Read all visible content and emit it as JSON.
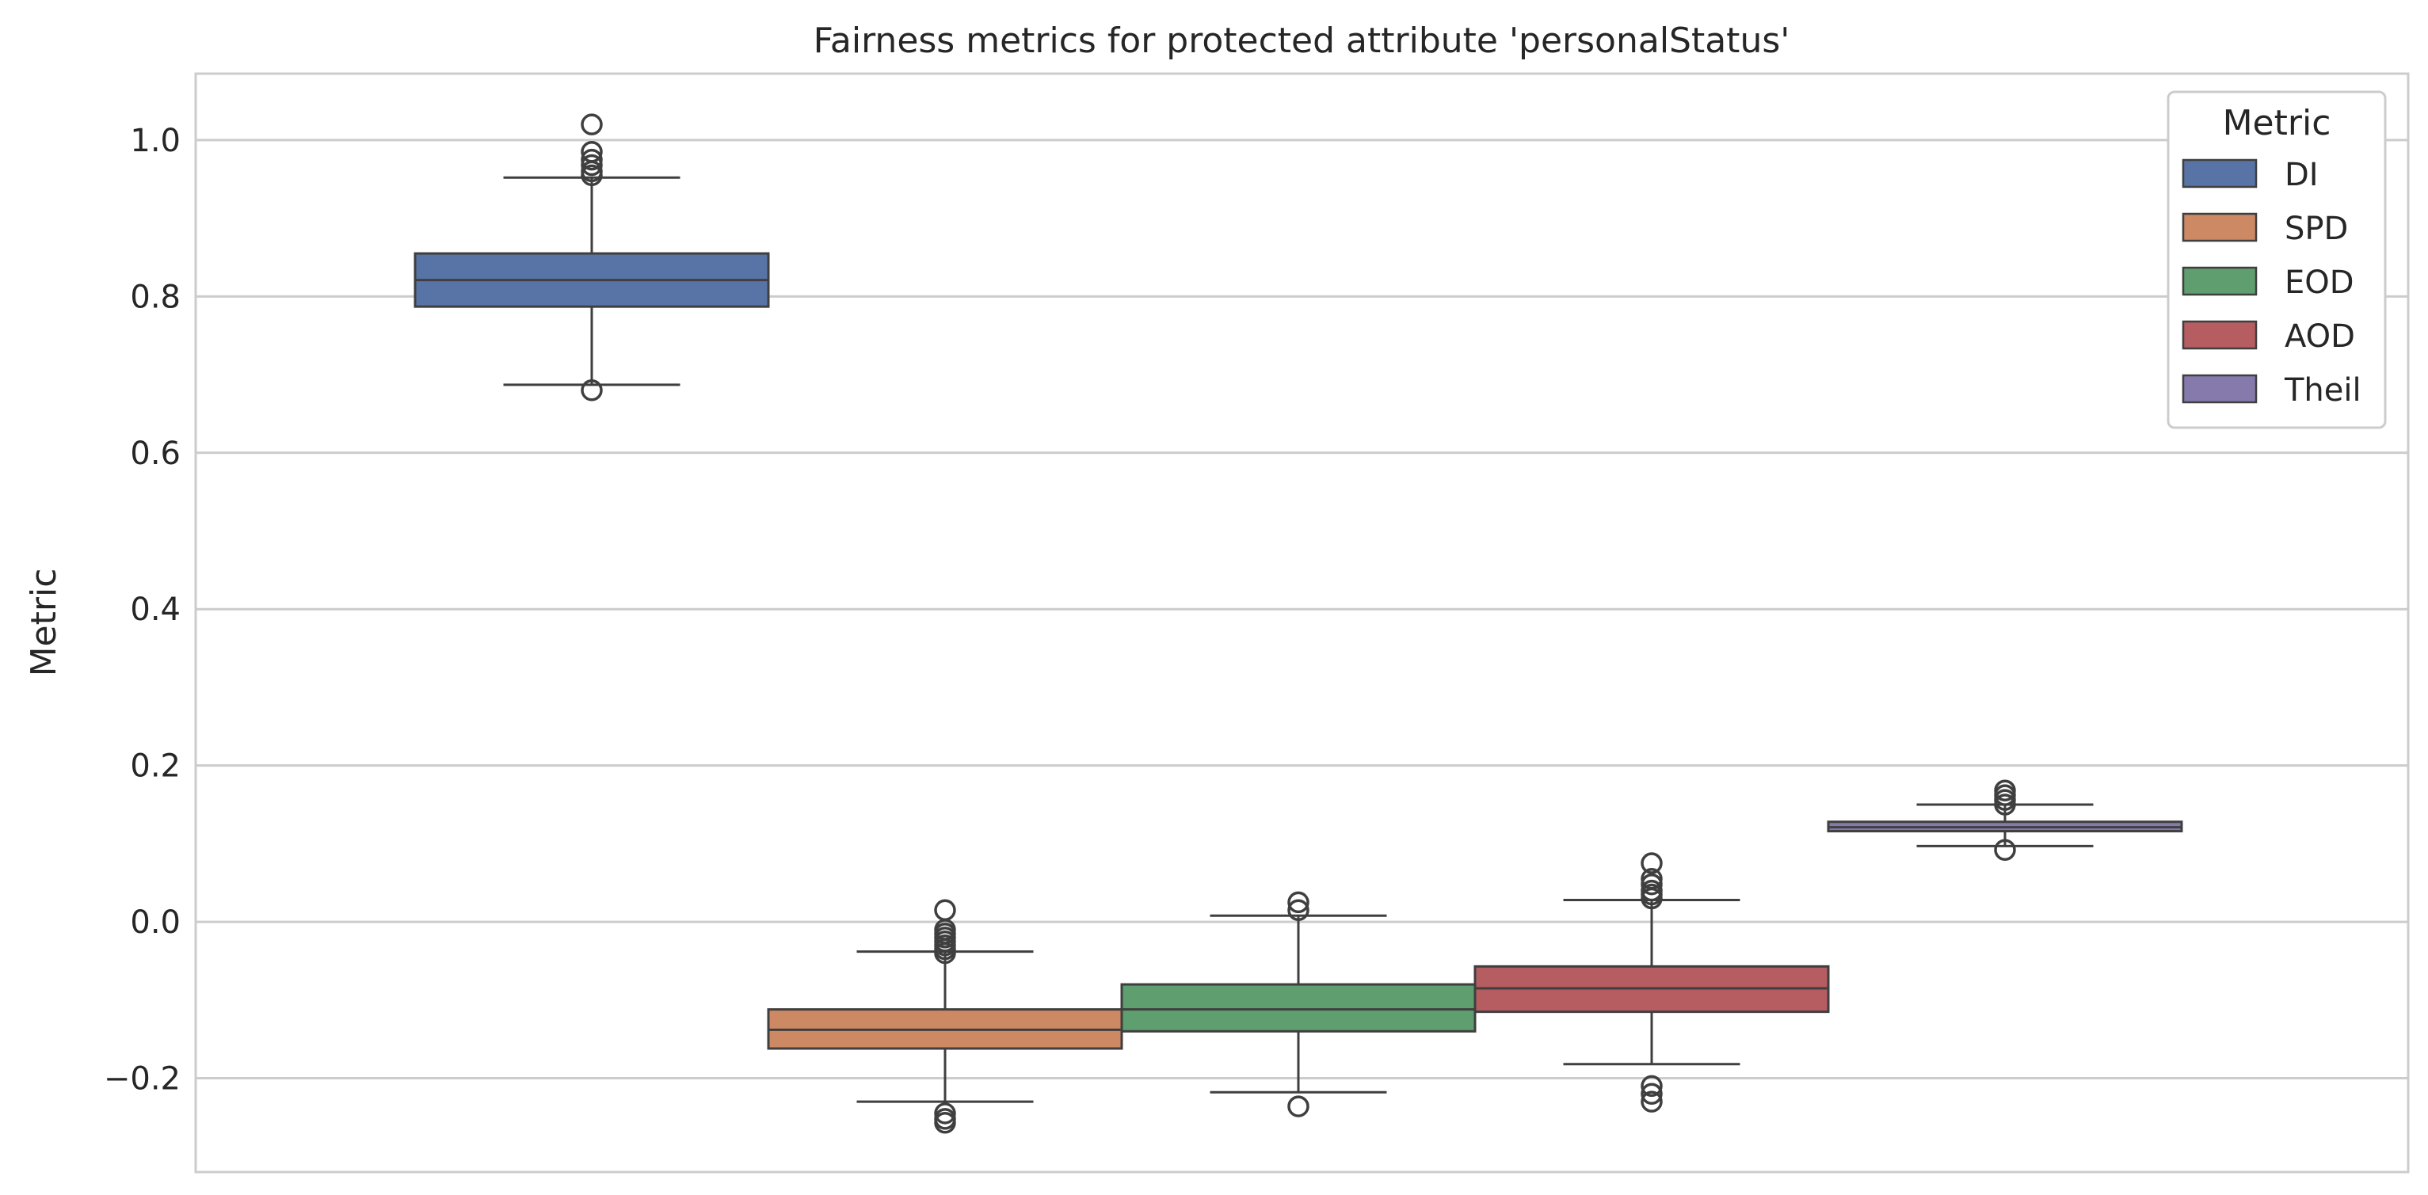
{
  "chart_data": {
    "type": "boxplot",
    "title": "Fairness metrics for protected attribute 'personalStatus'",
    "xlabel": "",
    "ylabel": "Metric",
    "ylim": [
      -0.32,
      1.085
    ],
    "yticks": [
      1.0,
      0.8,
      0.6,
      0.4,
      0.2,
      0.0,
      -0.2
    ],
    "ytick_labels": [
      "1.0",
      "0.8",
      "0.6",
      "0.4",
      "0.2",
      "0.0",
      "−0.2"
    ],
    "grid": true,
    "legend": {
      "title": "Metric",
      "placement": "top-right",
      "entries": [
        "DI",
        "SPD",
        "EOD",
        "AOD",
        "Theil"
      ]
    },
    "series": [
      {
        "name": "DI",
        "color": "#5874a6",
        "q1": 0.787,
        "median": 0.821,
        "q3": 0.855,
        "whisker_low": 0.687,
        "whisker_high": 0.952,
        "outliers": [
          1.02,
          0.985,
          0.975,
          0.968,
          0.96,
          0.955,
          0.68
        ]
      },
      {
        "name": "SPD",
        "color": "#cc8963",
        "q1": -0.162,
        "median": -0.138,
        "q3": -0.112,
        "whisker_low": -0.23,
        "whisker_high": -0.038,
        "outliers": [
          0.015,
          -0.01,
          -0.015,
          -0.02,
          -0.025,
          -0.03,
          -0.035,
          -0.04,
          -0.245,
          -0.252,
          -0.257
        ]
      },
      {
        "name": "EOD",
        "color": "#5f9e6e",
        "q1": -0.14,
        "median": -0.112,
        "q3": -0.08,
        "whisker_low": -0.218,
        "whisker_high": 0.008,
        "outliers": [
          0.025,
          0.015,
          -0.236
        ]
      },
      {
        "name": "AOD",
        "color": "#b55d60",
        "q1": -0.115,
        "median": -0.085,
        "q3": -0.057,
        "whisker_low": -0.182,
        "whisker_high": 0.028,
        "outliers": [
          0.075,
          0.055,
          0.048,
          0.04,
          0.035,
          0.03,
          -0.21,
          -0.22,
          -0.23
        ]
      },
      {
        "name": "Theil",
        "color": "#857aab",
        "q1": 0.116,
        "median": 0.121,
        "q3": 0.128,
        "whisker_low": 0.097,
        "whisker_high": 0.15,
        "outliers": [
          0.168,
          0.162,
          0.156,
          0.15,
          0.092
        ]
      }
    ]
  }
}
